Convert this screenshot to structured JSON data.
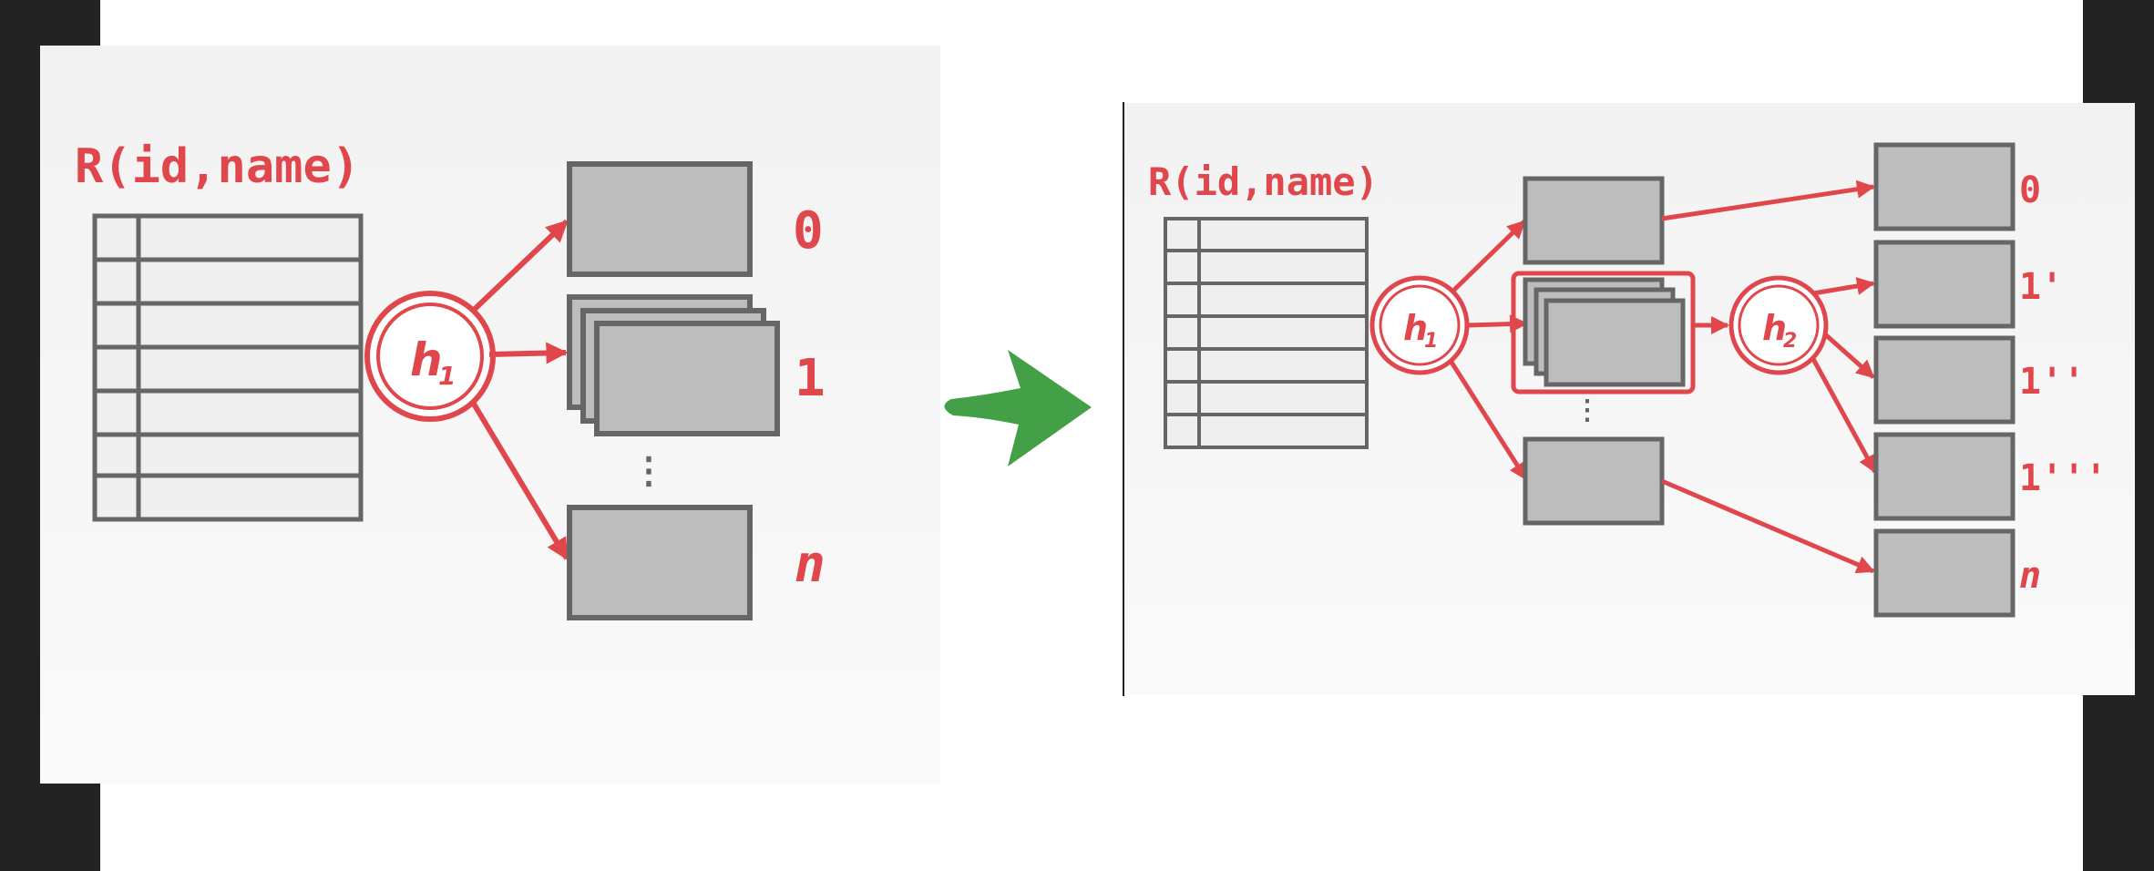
{
  "left_diagram": {
    "relation_label": "R(id,name)",
    "hash_function": "h",
    "hash_subscript": "1",
    "partitions": [
      "0",
      "1",
      "n"
    ],
    "ellipsis": "⋮"
  },
  "transition_arrow": {
    "color": "#43a047"
  },
  "right_diagram": {
    "relation_label": "R(id,name)",
    "hash_function_1": "h",
    "hash_subscript_1": "1",
    "hash_function_2": "h",
    "hash_subscript_2": "2",
    "ellipsis": "⋮",
    "partitions": [
      "0",
      "1'",
      "1''",
      "1'''",
      "n"
    ]
  },
  "colors": {
    "accent": "#e0474c",
    "bucket_fill": "#bdbdbd",
    "bucket_stroke": "#666666",
    "table_fill": "#efefef"
  }
}
